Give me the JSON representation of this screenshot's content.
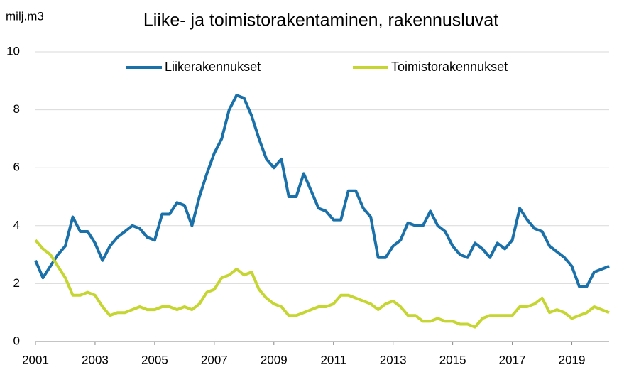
{
  "chart_data": {
    "type": "line",
    "title": "Liike- ja toimistorakentaminen, rakennusluvat",
    "y_label": "milj.m3",
    "x": [
      2001,
      2001.25,
      2001.5,
      2001.75,
      2002,
      2002.25,
      2002.5,
      2002.75,
      2003,
      2003.25,
      2003.5,
      2003.75,
      2004,
      2004.25,
      2004.5,
      2004.75,
      2005,
      2005.25,
      2005.5,
      2005.75,
      2006,
      2006.25,
      2006.5,
      2006.75,
      2007,
      2007.25,
      2007.5,
      2007.75,
      2008,
      2008.25,
      2008.5,
      2008.75,
      2009,
      2009.25,
      2009.5,
      2009.75,
      2010,
      2010.25,
      2010.5,
      2010.75,
      2011,
      2011.25,
      2011.5,
      2011.75,
      2012,
      2012.25,
      2012.5,
      2012.75,
      2013,
      2013.25,
      2013.5,
      2013.75,
      2014,
      2014.25,
      2014.5,
      2014.75,
      2015,
      2015.25,
      2015.5,
      2015.75,
      2016,
      2016.25,
      2016.5,
      2016.75,
      2017,
      2017.25,
      2017.5,
      2017.75,
      2018,
      2018.25,
      2018.5,
      2018.75,
      2019,
      2019.25,
      2019.5,
      2019.75,
      2020,
      2020.25
    ],
    "series": [
      {
        "name": "Liikerakennukset",
        "color": "#1a70a8",
        "values": [
          2.8,
          2.2,
          2.6,
          3.0,
          3.3,
          4.3,
          3.8,
          3.8,
          3.4,
          2.8,
          3.3,
          3.6,
          3.8,
          4.0,
          3.9,
          3.6,
          3.5,
          4.4,
          4.4,
          4.8,
          4.7,
          4.0,
          5.0,
          5.8,
          6.5,
          7.0,
          8.0,
          8.5,
          8.4,
          7.8,
          7.0,
          6.3,
          6.0,
          6.3,
          5.0,
          5.0,
          5.8,
          5.2,
          4.6,
          4.5,
          4.2,
          4.2,
          5.2,
          5.2,
          4.6,
          4.3,
          2.9,
          2.9,
          3.3,
          3.5,
          4.1,
          4.0,
          4.0,
          4.5,
          4.0,
          3.8,
          3.3,
          3.0,
          2.9,
          3.4,
          3.2,
          2.9,
          3.4,
          3.2,
          3.5,
          4.6,
          4.2,
          3.9,
          3.8,
          3.3,
          3.1,
          2.9,
          2.6,
          1.9,
          1.9,
          2.4,
          2.5,
          2.6
        ]
      },
      {
        "name": "Toimistorakennukset",
        "color": "#c5d632",
        "values": [
          3.5,
          3.2,
          3.0,
          2.6,
          2.2,
          1.6,
          1.6,
          1.7,
          1.6,
          1.2,
          0.9,
          1.0,
          1.0,
          1.1,
          1.2,
          1.1,
          1.1,
          1.2,
          1.2,
          1.1,
          1.2,
          1.1,
          1.3,
          1.7,
          1.8,
          2.2,
          2.3,
          2.5,
          2.3,
          2.4,
          1.8,
          1.5,
          1.3,
          1.2,
          0.9,
          0.9,
          1.0,
          1.1,
          1.2,
          1.2,
          1.3,
          1.6,
          1.6,
          1.5,
          1.4,
          1.3,
          1.1,
          1.3,
          1.4,
          1.2,
          0.9,
          0.9,
          0.7,
          0.7,
          0.8,
          0.7,
          0.7,
          0.6,
          0.6,
          0.5,
          0.8,
          0.9,
          0.9,
          0.9,
          0.9,
          1.2,
          1.2,
          1.3,
          1.5,
          1.0,
          1.1,
          1.0,
          0.8,
          0.9,
          1.0,
          1.2,
          1.1,
          1.0
        ]
      }
    ],
    "xlim": [
      2001,
      2020.25
    ],
    "xticks": [
      2001,
      2003,
      2005,
      2007,
      2009,
      2011,
      2013,
      2015,
      2017,
      2019
    ],
    "ylim": [
      0,
      10
    ],
    "yticks": [
      0,
      2,
      4,
      6,
      8,
      10
    ],
    "grid": true,
    "legend": "top"
  }
}
